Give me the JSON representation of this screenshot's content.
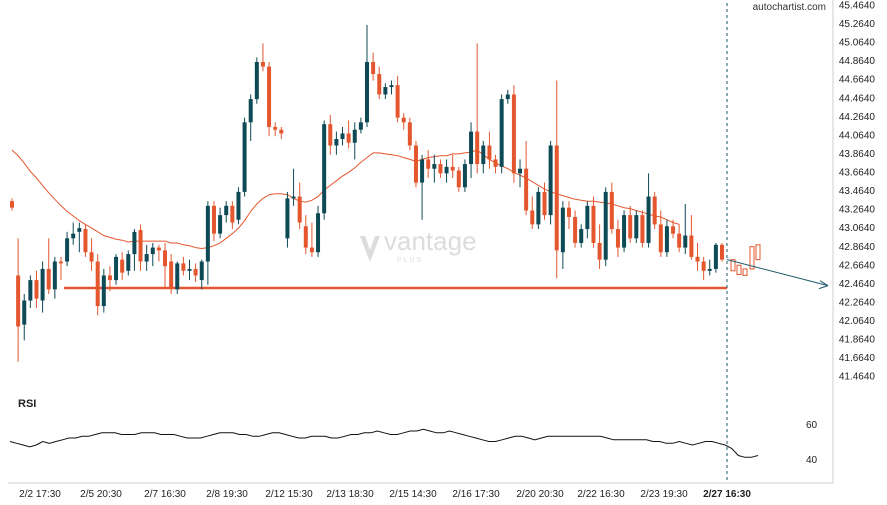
{
  "attribution": "autochartist.com",
  "watermark": {
    "brand": "vantage",
    "sub": "PLUS"
  },
  "rsi_label": "RSI",
  "colors": {
    "up": "#0e4a55",
    "down": "#e4572e",
    "ma": "#e4572e",
    "support": "#e4572e",
    "rsi": "#111111",
    "projection": "#1e5a6a"
  },
  "chart_data": {
    "type": "candlestick",
    "y_axis": {
      "min": 41.294,
      "max": 45.464,
      "unit_step": 0.2,
      "ticks": [
        "45.4640",
        "45.2640",
        "45.0640",
        "44.8640",
        "44.6640",
        "44.4640",
        "44.2640",
        "44.0640",
        "43.8640",
        "43.6640",
        "43.4640",
        "43.2640",
        "43.0640",
        "42.8640",
        "42.6640",
        "42.4640",
        "42.2640",
        "42.0640",
        "41.8640",
        "41.6640",
        "41.4640"
      ]
    },
    "x_labels": [
      "2/2 17:30",
      "2/5 20:30",
      "2/7 16:30",
      "2/8 19:30",
      "2/12 15:30",
      "2/13 18:30",
      "2/15 14:30",
      "2/16 17:30",
      "2/20 20:30",
      "2/22 16:30",
      "2/23 19:30",
      "2/27 16:30"
    ],
    "x_label_highlight": "2/27 16:30",
    "candles": [
      [
        43.35,
        43.38,
        43.25,
        43.28
      ],
      [
        42.55,
        42.95,
        41.62,
        42.0
      ],
      [
        42.02,
        42.35,
        41.85,
        42.28
      ],
      [
        42.28,
        42.55,
        42.2,
        42.5
      ],
      [
        42.5,
        42.6,
        42.2,
        42.3
      ],
      [
        42.28,
        42.7,
        42.15,
        42.62
      ],
      [
        42.62,
        42.95,
        42.35,
        42.4
      ],
      [
        42.4,
        42.75,
        42.3,
        42.7
      ],
      [
        42.7,
        42.75,
        42.5,
        42.68
      ],
      [
        42.7,
        43.02,
        42.65,
        42.95
      ],
      [
        42.95,
        43.12,
        42.88,
        43.0
      ],
      [
        43.02,
        43.12,
        42.8,
        43.06
      ],
      [
        43.05,
        43.1,
        42.75,
        42.8
      ],
      [
        42.8,
        42.95,
        42.6,
        42.7
      ],
      [
        42.7,
        42.78,
        42.12,
        42.22
      ],
      [
        42.22,
        42.62,
        42.15,
        42.55
      ],
      [
        42.55,
        42.65,
        42.38,
        42.5
      ],
      [
        42.5,
        42.78,
        42.45,
        42.75
      ],
      [
        42.72,
        42.8,
        42.5,
        42.58
      ],
      [
        42.6,
        42.82,
        42.55,
        42.78
      ],
      [
        42.78,
        43.05,
        42.6,
        43.02
      ],
      [
        43.04,
        43.1,
        42.6,
        42.7
      ],
      [
        42.7,
        42.88,
        42.6,
        42.78
      ],
      [
        42.78,
        42.9,
        42.65,
        42.85
      ],
      [
        42.85,
        42.88,
        42.7,
        42.82
      ],
      [
        42.82,
        42.9,
        42.4,
        42.65
      ],
      [
        42.7,
        42.78,
        42.35,
        42.42
      ],
      [
        42.4,
        42.7,
        42.35,
        42.68
      ],
      [
        42.68,
        42.75,
        42.55,
        42.6
      ],
      [
        42.6,
        42.72,
        42.5,
        42.62
      ],
      [
        42.62,
        42.68,
        42.48,
        42.55
      ],
      [
        42.5,
        42.72,
        42.4,
        42.7
      ],
      [
        42.7,
        43.35,
        42.45,
        43.3
      ],
      [
        43.3,
        43.35,
        42.92,
        43.0
      ],
      [
        43.0,
        43.28,
        42.95,
        43.2
      ],
      [
        43.2,
        43.35,
        43.12,
        43.3
      ],
      [
        43.3,
        43.35,
        43.05,
        43.12
      ],
      [
        43.15,
        43.5,
        43.1,
        43.45
      ],
      [
        43.45,
        44.25,
        43.4,
        44.2
      ],
      [
        44.2,
        44.5,
        44.0,
        44.45
      ],
      [
        44.45,
        44.9,
        44.4,
        44.85
      ],
      [
        44.85,
        45.05,
        44.75,
        44.8
      ],
      [
        44.8,
        44.85,
        44.05,
        44.15
      ],
      [
        44.15,
        44.2,
        44.05,
        44.12
      ],
      [
        44.12,
        44.15,
        44.02,
        44.08
      ],
      [
        42.95,
        43.45,
        42.85,
        43.38
      ],
      [
        43.38,
        43.7,
        43.3,
        43.4
      ],
      [
        43.4,
        43.55,
        43.05,
        43.12
      ],
      [
        43.08,
        43.2,
        42.78,
        42.85
      ],
      [
        42.85,
        43.12,
        42.75,
        42.8
      ],
      [
        42.8,
        43.3,
        42.75,
        43.22
      ],
      [
        43.22,
        44.22,
        43.15,
        44.18
      ],
      [
        44.18,
        44.28,
        43.85,
        43.95
      ],
      [
        43.95,
        44.1,
        43.85,
        44.02
      ],
      [
        44.02,
        44.15,
        43.95,
        44.08
      ],
      [
        44.08,
        44.22,
        43.92,
        43.98
      ],
      [
        43.98,
        44.2,
        43.8,
        44.12
      ],
      [
        44.12,
        44.25,
        44.08,
        44.2
      ],
      [
        44.2,
        45.25,
        44.15,
        44.85
      ],
      [
        44.85,
        44.95,
        44.65,
        44.72
      ],
      [
        44.72,
        44.8,
        44.45,
        44.5
      ],
      [
        44.5,
        44.62,
        44.45,
        44.58
      ],
      [
        44.58,
        44.65,
        44.5,
        44.6
      ],
      [
        44.6,
        44.7,
        44.2,
        44.25
      ],
      [
        44.25,
        44.3,
        44.12,
        44.2
      ],
      [
        44.2,
        44.25,
        43.9,
        43.95
      ],
      [
        43.95,
        44.0,
        43.5,
        43.55
      ],
      [
        43.55,
        43.85,
        43.15,
        43.8
      ],
      [
        43.8,
        43.9,
        43.6,
        43.7
      ],
      [
        43.7,
        43.85,
        43.55,
        43.75
      ],
      [
        43.75,
        43.8,
        43.6,
        43.65
      ],
      [
        43.65,
        43.8,
        43.55,
        43.72
      ],
      [
        43.72,
        43.85,
        43.6,
        43.68
      ],
      [
        43.68,
        43.72,
        43.45,
        43.5
      ],
      [
        43.5,
        43.8,
        43.45,
        43.75
      ],
      [
        43.75,
        44.2,
        43.6,
        44.1
      ],
      [
        44.1,
        45.05,
        43.65,
        43.75
      ],
      [
        43.75,
        44.0,
        43.65,
        43.95
      ],
      [
        43.95,
        44.1,
        43.7,
        43.8
      ],
      [
        43.8,
        43.85,
        43.65,
        43.72
      ],
      [
        43.72,
        44.5,
        43.65,
        44.45
      ],
      [
        44.45,
        44.55,
        44.4,
        44.5
      ],
      [
        44.5,
        44.6,
        43.55,
        43.65
      ],
      [
        43.65,
        43.8,
        43.5,
        43.7
      ],
      [
        43.7,
        44.0,
        43.2,
        43.25
      ],
      [
        43.25,
        43.4,
        43.05,
        43.1
      ],
      [
        43.1,
        43.5,
        43.05,
        43.45
      ],
      [
        43.45,
        43.55,
        43.15,
        43.2
      ],
      [
        43.2,
        44.0,
        43.1,
        43.95
      ],
      [
        43.95,
        44.65,
        42.52,
        42.82
      ],
      [
        42.8,
        43.35,
        42.62,
        43.28
      ],
      [
        43.28,
        43.35,
        43.05,
        43.18
      ],
      [
        43.18,
        43.25,
        42.85,
        42.9
      ],
      [
        42.9,
        43.1,
        42.85,
        43.05
      ],
      [
        43.05,
        43.35,
        42.95,
        43.3
      ],
      [
        43.3,
        43.4,
        42.85,
        42.9
      ],
      [
        42.9,
        43.1,
        42.62,
        42.72
      ],
      [
        42.72,
        43.5,
        42.65,
        43.45
      ],
      [
        43.45,
        43.55,
        43.0,
        43.05
      ],
      [
        43.05,
        43.15,
        42.75,
        42.85
      ],
      [
        42.85,
        43.25,
        42.8,
        43.2
      ],
      [
        43.2,
        43.3,
        42.9,
        42.95
      ],
      [
        42.95,
        43.25,
        42.9,
        43.2
      ],
      [
        43.2,
        43.25,
        42.85,
        42.9
      ],
      [
        42.9,
        43.65,
        42.85,
        43.4
      ],
      [
        43.4,
        43.45,
        43.05,
        43.1
      ],
      [
        43.1,
        43.25,
        42.75,
        42.8
      ],
      [
        42.8,
        43.15,
        42.75,
        43.08
      ],
      [
        43.08,
        43.15,
        42.95,
        43.0
      ],
      [
        43.0,
        43.1,
        42.8,
        42.85
      ],
      [
        42.85,
        43.32,
        42.78,
        42.98
      ],
      [
        42.98,
        43.2,
        42.72,
        42.75
      ],
      [
        42.75,
        42.9,
        42.6,
        42.7
      ],
      [
        42.7,
        42.75,
        42.5,
        42.6
      ],
      [
        42.6,
        42.72,
        42.55,
        42.62
      ],
      [
        42.62,
        42.9,
        42.58,
        42.88
      ],
      [
        42.88,
        42.9,
        42.7,
        42.72
      ]
    ],
    "moving_average": {
      "name": "",
      "values": [
        43.9,
        43.84,
        43.76,
        43.67,
        43.6,
        43.52,
        43.44,
        43.37,
        43.3,
        43.24,
        43.19,
        43.14,
        43.1,
        43.06,
        43.02,
        42.98,
        42.96,
        42.94,
        42.93,
        42.91,
        42.92,
        42.92,
        42.92,
        42.92,
        42.92,
        42.92,
        42.9,
        42.9,
        42.88,
        42.87,
        42.85,
        42.84,
        42.85,
        42.87,
        42.9,
        42.95,
        43.0,
        43.06,
        43.14,
        43.24,
        43.32,
        43.38,
        43.42,
        43.43,
        43.43,
        43.42,
        43.38,
        43.35,
        43.34,
        43.36,
        43.4,
        43.47,
        43.52,
        43.57,
        43.62,
        43.66,
        43.71,
        43.77,
        43.82,
        43.87,
        43.87,
        43.86,
        43.85,
        43.84,
        43.82,
        43.8,
        43.78,
        43.8,
        43.82,
        43.83,
        43.84,
        43.84,
        43.86,
        43.86,
        43.87,
        43.88,
        43.9,
        43.85,
        43.8,
        43.76,
        43.73,
        43.7,
        43.66,
        43.63,
        43.6,
        43.56,
        43.52,
        43.48,
        43.45,
        43.43,
        43.41,
        43.39,
        43.37,
        43.36,
        43.35,
        43.35,
        43.34,
        43.33,
        43.32,
        43.3,
        43.28,
        43.27,
        43.25,
        43.23,
        43.21,
        43.19,
        43.18,
        43.15,
        43.12,
        43.1
      ]
    },
    "support_level": 42.415,
    "projection": {
      "from_value": 42.72,
      "to_value": 42.44
    },
    "rsi": {
      "levels": [
        60,
        40
      ],
      "values": [
        50,
        49,
        48,
        47,
        48,
        50,
        49,
        50,
        51,
        52,
        52,
        53,
        53,
        54,
        55,
        55,
        55,
        54,
        54,
        54,
        55,
        55,
        55,
        54,
        54,
        54,
        53,
        52,
        52,
        52,
        53,
        54,
        55,
        55,
        55,
        54,
        54,
        53,
        53,
        54,
        55,
        55,
        54,
        53,
        52,
        52,
        53,
        53,
        53,
        52,
        52,
        53,
        54,
        54,
        55,
        55,
        56,
        55,
        54,
        54,
        55,
        56,
        56,
        57,
        56,
        55,
        55,
        56,
        55,
        54,
        53,
        52,
        51,
        50,
        50,
        51,
        52,
        53,
        53,
        52,
        51,
        52,
        53,
        53,
        53,
        53,
        53,
        53,
        53,
        53,
        53,
        52,
        51,
        51,
        51,
        51,
        51,
        51,
        50,
        50,
        49,
        49,
        50,
        49,
        48,
        49,
        50,
        50,
        49,
        48,
        46,
        42,
        41,
        41,
        42
      ]
    }
  }
}
